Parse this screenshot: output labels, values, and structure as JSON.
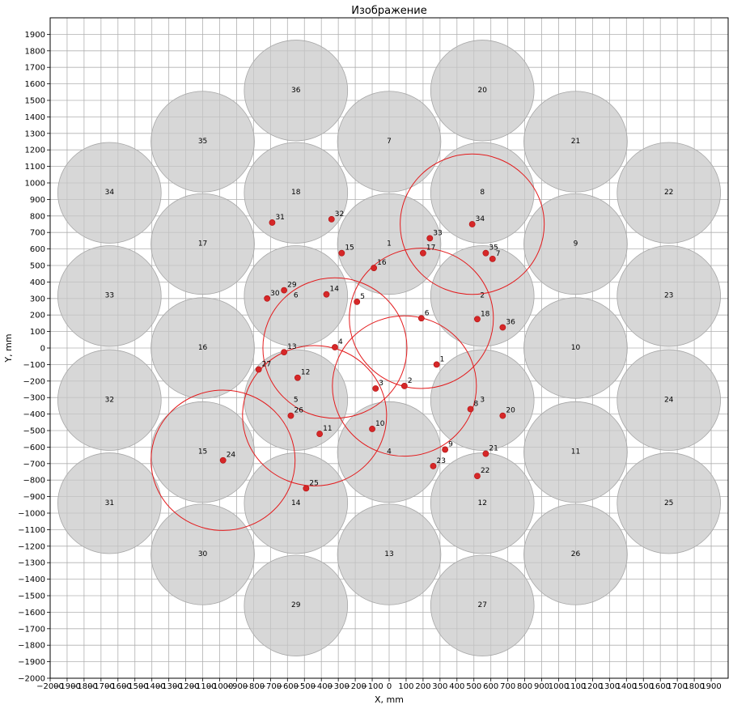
{
  "chart_data": {
    "type": "scatter",
    "title": "Изображение",
    "xlabel": "X, mm",
    "ylabel": "Y, mm",
    "xlim": [
      -2000,
      2000
    ],
    "ylim": [
      -2000,
      2000
    ],
    "tick_step": 100,
    "grid": true,
    "colors": {
      "disk": "#c8c8c8",
      "ring": "#e31a1c",
      "point": "#d62728"
    },
    "disk_radius": 305,
    "disks": [
      {
        "id": "1",
        "x": 0,
        "y": 630
      },
      {
        "id": "2",
        "x": 550,
        "y": 315
      },
      {
        "id": "3",
        "x": 550,
        "y": -315
      },
      {
        "id": "4",
        "x": 0,
        "y": -630
      },
      {
        "id": "5",
        "x": -550,
        "y": -315
      },
      {
        "id": "6",
        "x": -550,
        "y": 315
      },
      {
        "id": "7",
        "x": 0,
        "y": 1250
      },
      {
        "id": "8",
        "x": 550,
        "y": 940
      },
      {
        "id": "9",
        "x": 1100,
        "y": 630
      },
      {
        "id": "10",
        "x": 1100,
        "y": 0
      },
      {
        "id": "11",
        "x": 1100,
        "y": -630
      },
      {
        "id": "12",
        "x": 550,
        "y": -940
      },
      {
        "id": "13",
        "x": 0,
        "y": -1250
      },
      {
        "id": "14",
        "x": -550,
        "y": -940
      },
      {
        "id": "15",
        "x": -1100,
        "y": -630
      },
      {
        "id": "16",
        "x": -1100,
        "y": 0
      },
      {
        "id": "17",
        "x": -1100,
        "y": 630
      },
      {
        "id": "18",
        "x": -550,
        "y": 940
      },
      {
        "id": "19",
        "x": 0,
        "y": 0
      },
      {
        "id": "20",
        "x": 550,
        "y": 1560
      },
      {
        "id": "21",
        "x": 1100,
        "y": 1250
      },
      {
        "id": "22",
        "x": 1650,
        "y": 940
      },
      {
        "id": "23",
        "x": 1650,
        "y": 315
      },
      {
        "id": "24",
        "x": 1650,
        "y": -315
      },
      {
        "id": "25",
        "x": 1650,
        "y": -940
      },
      {
        "id": "26",
        "x": 1100,
        "y": -1250
      },
      {
        "id": "27",
        "x": 550,
        "y": -1560
      },
      {
        "id": "29",
        "x": -550,
        "y": -1560
      },
      {
        "id": "30",
        "x": -1100,
        "y": -1250
      },
      {
        "id": "31",
        "x": -1650,
        "y": -940
      },
      {
        "id": "32",
        "x": -1650,
        "y": -315
      },
      {
        "id": "33",
        "x": -1650,
        "y": 315
      },
      {
        "id": "34",
        "x": -1650,
        "y": 940
      },
      {
        "id": "35",
        "x": -1100,
        "y": 1250
      },
      {
        "id": "36",
        "x": -550,
        "y": 1560
      }
    ],
    "hidden_disks": [
      "19"
    ],
    "ring_radius": 425,
    "rings": [
      {
        "x": 490,
        "y": 750
      },
      {
        "x": 190,
        "y": 180
      },
      {
        "x": -320,
        "y": 0
      },
      {
        "x": 90,
        "y": -230
      },
      {
        "x": -440,
        "y": -410
      },
      {
        "x": -980,
        "y": -680
      }
    ],
    "points": [
      {
        "id": "1",
        "x": 280,
        "y": -100
      },
      {
        "id": "2",
        "x": 90,
        "y": -230
      },
      {
        "id": "3",
        "x": -80,
        "y": -245
      },
      {
        "id": "4",
        "x": -320,
        "y": 5
      },
      {
        "id": "5",
        "x": -190,
        "y": 280
      },
      {
        "id": "6",
        "x": 190,
        "y": 180
      },
      {
        "id": "7",
        "x": 610,
        "y": 540
      },
      {
        "id": "8",
        "x": 480,
        "y": -370
      },
      {
        "id": "9",
        "x": 330,
        "y": -615
      },
      {
        "id": "10",
        "x": -100,
        "y": -490
      },
      {
        "id": "11",
        "x": -410,
        "y": -520
      },
      {
        "id": "12",
        "x": -540,
        "y": -180
      },
      {
        "id": "13",
        "x": -620,
        "y": -25
      },
      {
        "id": "14",
        "x": -370,
        "y": 325
      },
      {
        "id": "15",
        "x": -280,
        "y": 575
      },
      {
        "id": "16",
        "x": -90,
        "y": 485
      },
      {
        "id": "17",
        "x": 200,
        "y": 575
      },
      {
        "id": "18",
        "x": 520,
        "y": 175
      },
      {
        "id": "20",
        "x": 670,
        "y": -410
      },
      {
        "id": "21",
        "x": 570,
        "y": -640
      },
      {
        "id": "22",
        "x": 520,
        "y": -775
      },
      {
        "id": "23",
        "x": 260,
        "y": -715
      },
      {
        "id": "24",
        "x": -980,
        "y": -680
      },
      {
        "id": "25",
        "x": -490,
        "y": -850
      },
      {
        "id": "26",
        "x": -580,
        "y": -410
      },
      {
        "id": "27",
        "x": -770,
        "y": -130
      },
      {
        "id": "29",
        "x": -620,
        "y": 350
      },
      {
        "id": "30",
        "x": -720,
        "y": 300
      },
      {
        "id": "31",
        "x": -690,
        "y": 760
      },
      {
        "id": "32",
        "x": -340,
        "y": 780
      },
      {
        "id": "33",
        "x": 240,
        "y": 665
      },
      {
        "id": "34",
        "x": 490,
        "y": 750
      },
      {
        "id": "35",
        "x": 570,
        "y": 575
      },
      {
        "id": "36",
        "x": 670,
        "y": 125
      }
    ]
  }
}
